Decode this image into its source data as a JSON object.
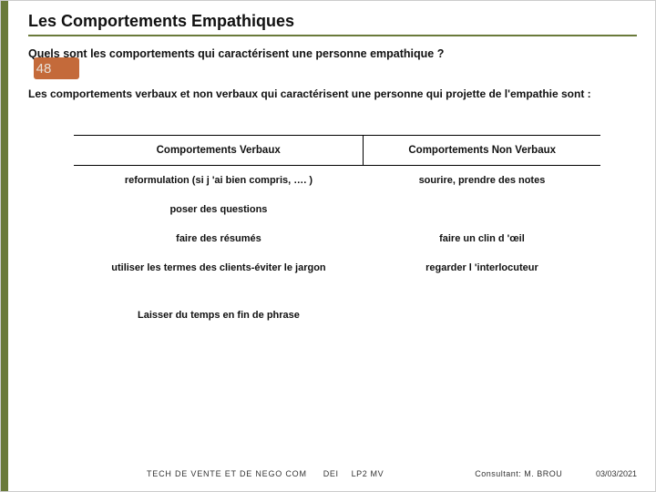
{
  "accent_color": "#6a7a3a",
  "pagenum_color": "#c46a3a",
  "pagenum_text_color": "#e8e0d8",
  "title": "Les Comportements Empathiques",
  "question": "Quels sont les comportements qui caractérisent une personne empathique ?",
  "page_number": "48",
  "intro": "Les comportements verbaux et non verbaux qui caractérisent une personne qui projette de l'empathie sont :",
  "table": {
    "headers": [
      "Comportements Verbaux",
      "Comportements Non Verbaux"
    ],
    "rows": [
      [
        "reformulation (si j 'ai bien compris, …. )",
        "sourire, prendre des notes"
      ],
      [
        "poser des questions",
        ""
      ],
      [
        "faire des résumés",
        "faire un clin d 'œil"
      ],
      [
        "utiliser les termes des clients-éviter le jargon",
        "regarder l 'interlocuteur"
      ],
      [
        "",
        ""
      ],
      [
        "Laisser du temps en fin de phrase",
        ""
      ]
    ]
  },
  "footer": {
    "course": "TECH DE VENTE ET DE NEGO COM",
    "dei": "DEI",
    "lp": "LP2 MV",
    "consultant": "Consultant: M. BROU",
    "date": "03/03/2021"
  }
}
